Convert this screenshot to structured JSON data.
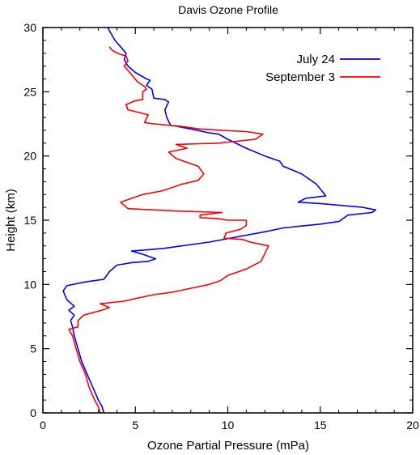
{
  "chart_data": {
    "type": "line",
    "title": "Davis Ozone Profile",
    "xlabel": "Ozone Partial Pressure (mPa)",
    "ylabel": "Height (km)",
    "xlim": [
      0,
      20
    ],
    "ylim": [
      0,
      30
    ],
    "xticks": [
      0,
      5,
      10,
      15,
      20
    ],
    "yticks": [
      0,
      5,
      10,
      15,
      20,
      25,
      30
    ],
    "grid": false,
    "legend_position": "top-right",
    "series": [
      {
        "name": "July 24",
        "color": "#0000ff",
        "points": [
          [
            3.3,
            0.0
          ],
          [
            3.2,
            0.5
          ],
          [
            3.0,
            1.0
          ],
          [
            2.7,
            2.0
          ],
          [
            2.4,
            3.0
          ],
          [
            2.1,
            4.0
          ],
          [
            1.9,
            5.0
          ],
          [
            1.7,
            6.0
          ],
          [
            1.6,
            6.7
          ],
          [
            1.5,
            7.2
          ],
          [
            1.7,
            7.6
          ],
          [
            1.4,
            8.0
          ],
          [
            1.7,
            8.3
          ],
          [
            1.3,
            8.8
          ],
          [
            1.1,
            9.5
          ],
          [
            1.3,
            9.9
          ],
          [
            2.3,
            10.2
          ],
          [
            3.3,
            10.4
          ],
          [
            3.6,
            11.0
          ],
          [
            4.0,
            11.5
          ],
          [
            4.8,
            11.7
          ],
          [
            5.7,
            11.8
          ],
          [
            6.1,
            12.0
          ],
          [
            5.3,
            12.4
          ],
          [
            4.8,
            12.6
          ],
          [
            6.5,
            12.8
          ],
          [
            7.0,
            12.9
          ],
          [
            9.0,
            13.3
          ],
          [
            10.5,
            13.7
          ],
          [
            12.0,
            14.1
          ],
          [
            13.0,
            14.4
          ],
          [
            15.0,
            14.7
          ],
          [
            16.0,
            14.9
          ],
          [
            16.5,
            15.4
          ],
          [
            17.8,
            15.6
          ],
          [
            18.0,
            15.8
          ],
          [
            17.3,
            16.0
          ],
          [
            15.0,
            16.3
          ],
          [
            13.8,
            16.4
          ],
          [
            14.2,
            16.7
          ],
          [
            15.3,
            16.9
          ],
          [
            14.8,
            17.8
          ],
          [
            14.0,
            18.6
          ],
          [
            13.0,
            19.2
          ],
          [
            12.8,
            19.6
          ],
          [
            12.0,
            20.0
          ],
          [
            11.0,
            20.6
          ],
          [
            10.0,
            21.3
          ],
          [
            9.5,
            21.7
          ],
          [
            9.0,
            21.8
          ],
          [
            8.0,
            22.1
          ],
          [
            6.9,
            22.4
          ],
          [
            6.7,
            23.0
          ],
          [
            6.6,
            23.6
          ],
          [
            6.8,
            24.2
          ],
          [
            6.6,
            24.4
          ],
          [
            6.0,
            24.5
          ],
          [
            5.9,
            25.2
          ],
          [
            5.6,
            25.5
          ],
          [
            5.8,
            25.9
          ],
          [
            5.6,
            26.0
          ],
          [
            5.0,
            26.5
          ],
          [
            4.6,
            27.0
          ],
          [
            4.4,
            27.5
          ],
          [
            4.5,
            28.0
          ],
          [
            4.2,
            28.5
          ],
          [
            3.9,
            29.0
          ],
          [
            3.7,
            29.5
          ],
          [
            3.5,
            30.0
          ]
        ]
      },
      {
        "name": "September 3",
        "color": "#ff0000",
        "points": [
          [
            3.1,
            0.0
          ],
          [
            3.0,
            0.5
          ],
          [
            2.8,
            1.0
          ],
          [
            2.5,
            2.0
          ],
          [
            2.3,
            3.0
          ],
          [
            2.0,
            4.0
          ],
          [
            1.8,
            5.0
          ],
          [
            1.6,
            6.0
          ],
          [
            1.4,
            6.5
          ],
          [
            1.9,
            6.7
          ],
          [
            1.9,
            7.2
          ],
          [
            2.2,
            7.6
          ],
          [
            2.7,
            7.8
          ],
          [
            3.2,
            8.0
          ],
          [
            3.6,
            8.2
          ],
          [
            3.1,
            8.5
          ],
          [
            4.4,
            8.7
          ],
          [
            5.0,
            8.9
          ],
          [
            6.0,
            9.2
          ],
          [
            7.0,
            9.4
          ],
          [
            8.0,
            9.7
          ],
          [
            9.0,
            10.0
          ],
          [
            9.6,
            10.3
          ],
          [
            10.0,
            10.7
          ],
          [
            11.0,
            11.2
          ],
          [
            11.8,
            11.8
          ],
          [
            12.0,
            12.4
          ],
          [
            12.2,
            13.0
          ],
          [
            11.2,
            13.3
          ],
          [
            10.8,
            13.5
          ],
          [
            9.8,
            13.6
          ],
          [
            9.9,
            14.0
          ],
          [
            10.7,
            14.3
          ],
          [
            11.0,
            14.6
          ],
          [
            11.0,
            15.0
          ],
          [
            10.0,
            15.0
          ],
          [
            9.6,
            15.1
          ],
          [
            8.5,
            15.2
          ],
          [
            8.5,
            15.4
          ],
          [
            9.7,
            15.6
          ],
          [
            7.5,
            15.7
          ],
          [
            4.6,
            15.9
          ],
          [
            4.2,
            16.4
          ],
          [
            5.4,
            17.0
          ],
          [
            6.5,
            17.3
          ],
          [
            7.5,
            17.8
          ],
          [
            8.4,
            18.1
          ],
          [
            8.7,
            18.6
          ],
          [
            8.4,
            19.2
          ],
          [
            7.2,
            19.8
          ],
          [
            6.8,
            20.3
          ],
          [
            7.8,
            20.6
          ],
          [
            7.2,
            20.9
          ],
          [
            9.5,
            21.0
          ],
          [
            11.5,
            21.3
          ],
          [
            11.9,
            21.7
          ],
          [
            11.0,
            21.9
          ],
          [
            9.6,
            22.0
          ],
          [
            8.5,
            22.1
          ],
          [
            7.5,
            22.3
          ],
          [
            6.0,
            22.5
          ],
          [
            5.5,
            22.6
          ],
          [
            5.7,
            23.2
          ],
          [
            4.6,
            23.6
          ],
          [
            4.5,
            24.0
          ],
          [
            5.0,
            24.3
          ],
          [
            5.4,
            24.4
          ],
          [
            5.4,
            25.0
          ],
          [
            5.6,
            25.2
          ],
          [
            5.5,
            25.4
          ],
          [
            5.1,
            25.8
          ],
          [
            4.7,
            26.5
          ],
          [
            4.4,
            27.0
          ],
          [
            4.6,
            27.4
          ],
          [
            4.5,
            27.8
          ],
          [
            4.2,
            27.9
          ],
          [
            3.9,
            28.1
          ],
          [
            3.7,
            28.3
          ],
          [
            3.6,
            28.5
          ]
        ]
      }
    ]
  }
}
